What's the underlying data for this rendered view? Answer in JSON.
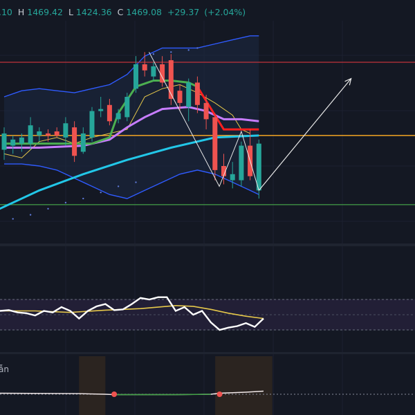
{
  "ohlc_bar": {
    "open_fragment": ".10",
    "high_key": "H",
    "high": "1469.42",
    "low_key": "L",
    "low": "1424.36",
    "close_key": "C",
    "close": "1469.08",
    "change": "+29.37",
    "change_pct": "(+2.04%)"
  },
  "bottom_pane": {
    "label_fragment": "ẫn"
  },
  "colors": {
    "background": "#141823",
    "up": "#26a69a",
    "down": "#ef5350",
    "ohlc_value": "#26a69a",
    "bollinger": "#2f5bff",
    "ema_slow": "#22c7e8",
    "ema_mid": "#c77dff",
    "ema_fast": "#4caf50",
    "ema_fast_down": "#ff1f1f",
    "signal": "#e6c84a",
    "resistance": "#c0333a",
    "support_orange": "#f5a623",
    "support_green": "#43a047",
    "rsi_line": "#ffffff",
    "rsi_ma": "#e6c84a"
  },
  "chart_data": [
    {
      "type": "candlestick",
      "pane": "price",
      "candles": [
        {
          "t": 1,
          "o": 1430,
          "h": 1441,
          "l": 1425,
          "c": 1438
        },
        {
          "t": 2,
          "o": 1432,
          "h": 1437,
          "l": 1428,
          "c": 1435
        },
        {
          "t": 3,
          "o": 1433,
          "h": 1438,
          "l": 1429,
          "c": 1436
        },
        {
          "t": 4,
          "o": 1433,
          "h": 1446,
          "l": 1430,
          "c": 1442
        },
        {
          "t": 5,
          "o": 1437,
          "h": 1441,
          "l": 1434,
          "c": 1439
        },
        {
          "t": 6,
          "o": 1438,
          "h": 1440,
          "l": 1434,
          "c": 1437
        },
        {
          "t": 7,
          "o": 1439,
          "h": 1441,
          "l": 1436,
          "c": 1437
        },
        {
          "t": 8,
          "o": 1436,
          "h": 1446,
          "l": 1432,
          "c": 1443
        },
        {
          "t": 9,
          "o": 1441,
          "h": 1444,
          "l": 1424,
          "c": 1427
        },
        {
          "t": 10,
          "o": 1429,
          "h": 1441,
          "l": 1428,
          "c": 1438
        },
        {
          "t": 11,
          "o": 1436,
          "h": 1451,
          "l": 1434,
          "c": 1449
        },
        {
          "t": 12,
          "o": 1449,
          "h": 1456,
          "l": 1446,
          "c": 1450
        },
        {
          "t": 13,
          "o": 1452,
          "h": 1455,
          "l": 1442,
          "c": 1444
        },
        {
          "t": 14,
          "o": 1445,
          "h": 1450,
          "l": 1443,
          "c": 1448
        },
        {
          "t": 15,
          "o": 1446,
          "h": 1458,
          "l": 1444,
          "c": 1456
        },
        {
          "t": 16,
          "o": 1460,
          "h": 1476,
          "l": 1458,
          "c": 1472
        },
        {
          "t": 17,
          "o": 1472,
          "h": 1478,
          "l": 1466,
          "c": 1469
        },
        {
          "t": 18,
          "o": 1466,
          "h": 1473,
          "l": 1464,
          "c": 1471
        },
        {
          "t": 19,
          "o": 1472,
          "h": 1476,
          "l": 1461,
          "c": 1463
        },
        {
          "t": 20,
          "o": 1474,
          "h": 1477,
          "l": 1452,
          "c": 1455
        },
        {
          "t": 21,
          "o": 1459,
          "h": 1462,
          "l": 1449,
          "c": 1453
        },
        {
          "t": 22,
          "o": 1451,
          "h": 1465,
          "l": 1444,
          "c": 1463
        },
        {
          "t": 23,
          "o": 1463,
          "h": 1466,
          "l": 1448,
          "c": 1452
        },
        {
          "t": 24,
          "o": 1453,
          "h": 1457,
          "l": 1440,
          "c": 1445
        },
        {
          "t": 25,
          "o": 1446,
          "h": 1448,
          "l": 1415,
          "c": 1420
        },
        {
          "t": 26,
          "o": 1422,
          "h": 1428,
          "l": 1413,
          "c": 1417
        },
        {
          "t": 27,
          "o": 1415,
          "h": 1424,
          "l": 1411,
          "c": 1418
        },
        {
          "t": 28,
          "o": 1415,
          "h": 1434,
          "l": 1412,
          "c": 1432
        },
        {
          "t": 29,
          "o": 1432,
          "h": 1440,
          "l": 1415,
          "c": 1417
        },
        {
          "t": 30,
          "o": 1410,
          "h": 1435,
          "l": 1406,
          "c": 1433
        }
      ],
      "ylim": [
        1388,
        1490
      ],
      "xlim": [
        0.5,
        50
      ],
      "bollinger_upper": [
        [
          1,
          1456
        ],
        [
          3,
          1459
        ],
        [
          5,
          1460
        ],
        [
          7,
          1459
        ],
        [
          9,
          1458
        ],
        [
          11,
          1460
        ],
        [
          13,
          1462
        ],
        [
          15,
          1467
        ],
        [
          17,
          1476
        ],
        [
          19,
          1480
        ],
        [
          21,
          1480
        ],
        [
          23,
          1480
        ],
        [
          25,
          1482
        ],
        [
          27,
          1484
        ],
        [
          29,
          1486
        ],
        [
          30,
          1486
        ]
      ],
      "bollinger_lower": [
        [
          1,
          1423
        ],
        [
          3,
          1423
        ],
        [
          5,
          1422
        ],
        [
          7,
          1420
        ],
        [
          9,
          1416
        ],
        [
          11,
          1412
        ],
        [
          13,
          1408
        ],
        [
          15,
          1406
        ],
        [
          17,
          1410
        ],
        [
          19,
          1414
        ],
        [
          21,
          1418
        ],
        [
          23,
          1420
        ],
        [
          25,
          1418
        ],
        [
          27,
          1414
        ],
        [
          29,
          1410
        ],
        [
          30,
          1408
        ]
      ],
      "ema_slow": [
        [
          0,
          1400
        ],
        [
          5,
          1410
        ],
        [
          10,
          1418
        ],
        [
          15,
          1425
        ],
        [
          20,
          1431
        ],
        [
          25,
          1436
        ],
        [
          30,
          1437
        ]
      ],
      "ema_mid": [
        [
          1,
          1431
        ],
        [
          5,
          1431
        ],
        [
          10,
          1432
        ],
        [
          13,
          1435
        ],
        [
          15,
          1441
        ],
        [
          17,
          1446
        ],
        [
          19,
          1450
        ],
        [
          22,
          1451
        ],
        [
          24,
          1449
        ],
        [
          26,
          1445
        ],
        [
          28,
          1445
        ],
        [
          30,
          1444
        ]
      ],
      "ema_fast": [
        [
          1,
          1433
        ],
        [
          11,
          1433
        ],
        [
          13,
          1436
        ],
        [
          14,
          1448
        ],
        [
          16,
          1461
        ],
        [
          18,
          1464
        ],
        [
          20,
          1464
        ],
        [
          22,
          1463
        ],
        [
          23,
          1461
        ]
      ],
      "ema_fast_down": [
        [
          23,
          1461
        ],
        [
          24,
          1454
        ],
        [
          26,
          1440
        ],
        [
          28,
          1440
        ],
        [
          30,
          1440
        ]
      ],
      "signal_line": [
        [
          1,
          1428
        ],
        [
          3,
          1426
        ],
        [
          5,
          1434
        ],
        [
          7,
          1436
        ],
        [
          9,
          1433
        ],
        [
          11,
          1436
        ],
        [
          13,
          1438
        ],
        [
          15,
          1440
        ],
        [
          17,
          1456
        ],
        [
          19,
          1460
        ],
        [
          21,
          1462
        ],
        [
          23,
          1458
        ],
        [
          25,
          1453
        ],
        [
          27,
          1447
        ],
        [
          28,
          1440
        ],
        [
          29,
          1438
        ]
      ],
      "parabolic_dots": [
        [
          2,
          1396
        ],
        [
          4,
          1398
        ],
        [
          6,
          1401
        ],
        [
          8,
          1404
        ],
        [
          10,
          1406
        ],
        [
          12,
          1409
        ],
        [
          14,
          1412
        ],
        [
          16,
          1414
        ],
        [
          18,
          1477
        ],
        [
          20,
          1478
        ],
        [
          22,
          1479
        ],
        [
          23,
          1480
        ]
      ],
      "zigzag": [
        [
          17.5,
          1478
        ],
        [
          25.5,
          1412
        ],
        [
          28,
          1439
        ],
        [
          30,
          1410
        ]
      ],
      "projection": [
        [
          30,
          1410
        ],
        [
          40.5,
          1465
        ]
      ],
      "levels": [
        1473,
        1437,
        1403
      ]
    },
    {
      "type": "line",
      "pane": "rsi",
      "ylim": [
        0,
        100
      ],
      "band": [
        30,
        70
      ],
      "rsi": [
        [
          0,
          55
        ],
        [
          1,
          56
        ],
        [
          2,
          53
        ],
        [
          3,
          52
        ],
        [
          4,
          49
        ],
        [
          5,
          55
        ],
        [
          6,
          53
        ],
        [
          7,
          60
        ],
        [
          8,
          55
        ],
        [
          9,
          45
        ],
        [
          10,
          55
        ],
        [
          11,
          61
        ],
        [
          12,
          64
        ],
        [
          13,
          56
        ],
        [
          14,
          57
        ],
        [
          15,
          64
        ],
        [
          16,
          72
        ],
        [
          17,
          70
        ],
        [
          18,
          73
        ],
        [
          19,
          73
        ],
        [
          20,
          55
        ],
        [
          21,
          60
        ],
        [
          22,
          50
        ],
        [
          23,
          55
        ],
        [
          24,
          40
        ],
        [
          25,
          30
        ],
        [
          26,
          33
        ],
        [
          27,
          35
        ],
        [
          28,
          39
        ],
        [
          29,
          34
        ],
        [
          30,
          45
        ]
      ],
      "rsi_ma": [
        [
          0,
          55
        ],
        [
          4,
          55
        ],
        [
          8,
          53
        ],
        [
          12,
          56
        ],
        [
          16,
          58
        ],
        [
          20,
          62
        ],
        [
          22,
          61
        ],
        [
          24,
          57
        ],
        [
          26,
          52
        ],
        [
          28,
          48
        ],
        [
          30,
          45
        ]
      ]
    },
    {
      "type": "line",
      "pane": "lower-indicator",
      "ylim": [
        -1,
        1
      ],
      "zero": 0,
      "series": [
        [
          0,
          0.05
        ],
        [
          9,
          0.03
        ],
        [
          12,
          0
        ],
        [
          13,
          -0.02
        ],
        [
          20,
          -0.02
        ],
        [
          24,
          0
        ],
        [
          25,
          0.05
        ],
        [
          28,
          0.1
        ],
        [
          30,
          0.15
        ]
      ],
      "markers": [
        [
          13,
          0
        ],
        [
          25,
          0
        ]
      ],
      "shaded_ranges": [
        [
          9,
          12
        ],
        [
          24.5,
          31
        ]
      ]
    }
  ]
}
